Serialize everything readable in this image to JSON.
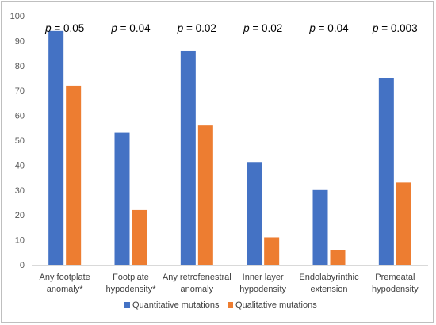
{
  "chart_data": {
    "type": "bar",
    "categories": [
      [
        "Any footplate",
        "anomaly*"
      ],
      [
        "Footplate",
        "hypodensity*"
      ],
      [
        "Any retrofenestral",
        "anomaly"
      ],
      [
        "Inner layer",
        "hypodensity"
      ],
      [
        "Endolabyrinthic",
        "extension"
      ],
      [
        "Premeatal",
        "hypodensity"
      ]
    ],
    "series": [
      {
        "name": "Quantitative mutations",
        "color": "#4472C4",
        "values": [
          94,
          53,
          86,
          41,
          30,
          75
        ]
      },
      {
        "name": "Qualitative mutations",
        "color": "#ED7D31",
        "values": [
          72,
          22,
          56,
          11,
          6,
          33
        ]
      }
    ],
    "annotations": [
      {
        "label": "p",
        "value": " = 0.05"
      },
      {
        "label": "p",
        "value": " = 0.04"
      },
      {
        "label": "p",
        "value": " = 0.02"
      },
      {
        "label": "p",
        "value": " = 0.02"
      },
      {
        "label": "p",
        "value": " = 0.04"
      },
      {
        "label": "p",
        "value": " = 0.003"
      }
    ],
    "ylim": [
      0,
      100
    ],
    "yticks": [
      0,
      10,
      20,
      30,
      40,
      50,
      60,
      70,
      80,
      90,
      100
    ],
    "grid": false,
    "legend_position": "bottom",
    "title": "",
    "xlabel": "",
    "ylabel": ""
  }
}
